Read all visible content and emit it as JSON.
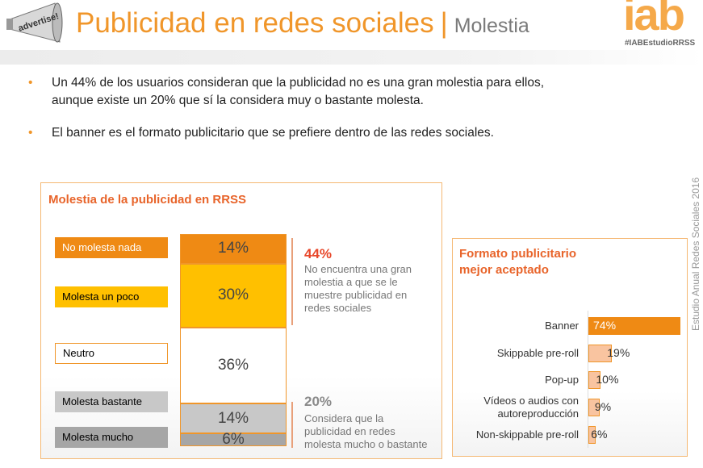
{
  "header": {
    "title": "Publicidad en redes sociales",
    "separator": "|",
    "subtitle": "Molestia",
    "logo_text": "iab",
    "hashtag": "#IABEstudioRRSS",
    "megaphone_text": "advertise!"
  },
  "bullets": [
    {
      "lines": [
        "Un 44% de los usuarios consideran que la publicidad no es una gran molestia para ellos,",
        "aunque existe un 20% que sí la considera muy o bastante molesta."
      ]
    },
    {
      "lines": [
        "El banner es el formato publicitario que se prefiere dentro de las redes sociales."
      ]
    }
  ],
  "side_text": "Estudio Anual Redes Sociales 2016",
  "chart_data": [
    {
      "type": "bar",
      "stacked": true,
      "title": "Molestia de la publicidad en RRSS",
      "categories": [
        "No molesta nada",
        "Molesta un poco",
        "Neutro",
        "Molesta bastante",
        "Molesta mucho"
      ],
      "values": [
        14,
        30,
        36,
        14,
        6
      ],
      "value_labels": [
        "14%",
        "30%",
        "36%",
        "14%",
        "6%"
      ],
      "colors": [
        "#EF8A14",
        "#FFC000",
        "#FFFFFF",
        "#C8C8C8",
        "#A6A6A6"
      ],
      "annotations": [
        {
          "value": "44%",
          "text": [
            "No encuentra una gran",
            "molestia a que se le",
            "muestre publicidad en",
            "redes sociales"
          ],
          "color": "#E8472A"
        },
        {
          "value": "20%",
          "text": [
            "Considera que la",
            "publicidad en redes",
            "molesta mucho o bastante"
          ],
          "color": "#8a8a8a"
        }
      ]
    },
    {
      "type": "bar",
      "orientation": "horizontal",
      "title": [
        "Formato publicitario",
        "mejor aceptado"
      ],
      "categories": [
        [
          "Banner"
        ],
        [
          "Skippable pre-roll"
        ],
        [
          "Pop-up"
        ],
        [
          "Vídeos o audios con",
          "autoreproducción"
        ],
        [
          "Non-skippable pre-roll"
        ]
      ],
      "values": [
        74,
        19,
        10,
        9,
        6
      ],
      "value_labels": [
        "74%",
        "19%",
        "10%",
        "9%",
        "6%"
      ],
      "colors": [
        "#EF8A14",
        "#F9C4A0"
      ]
    }
  ]
}
